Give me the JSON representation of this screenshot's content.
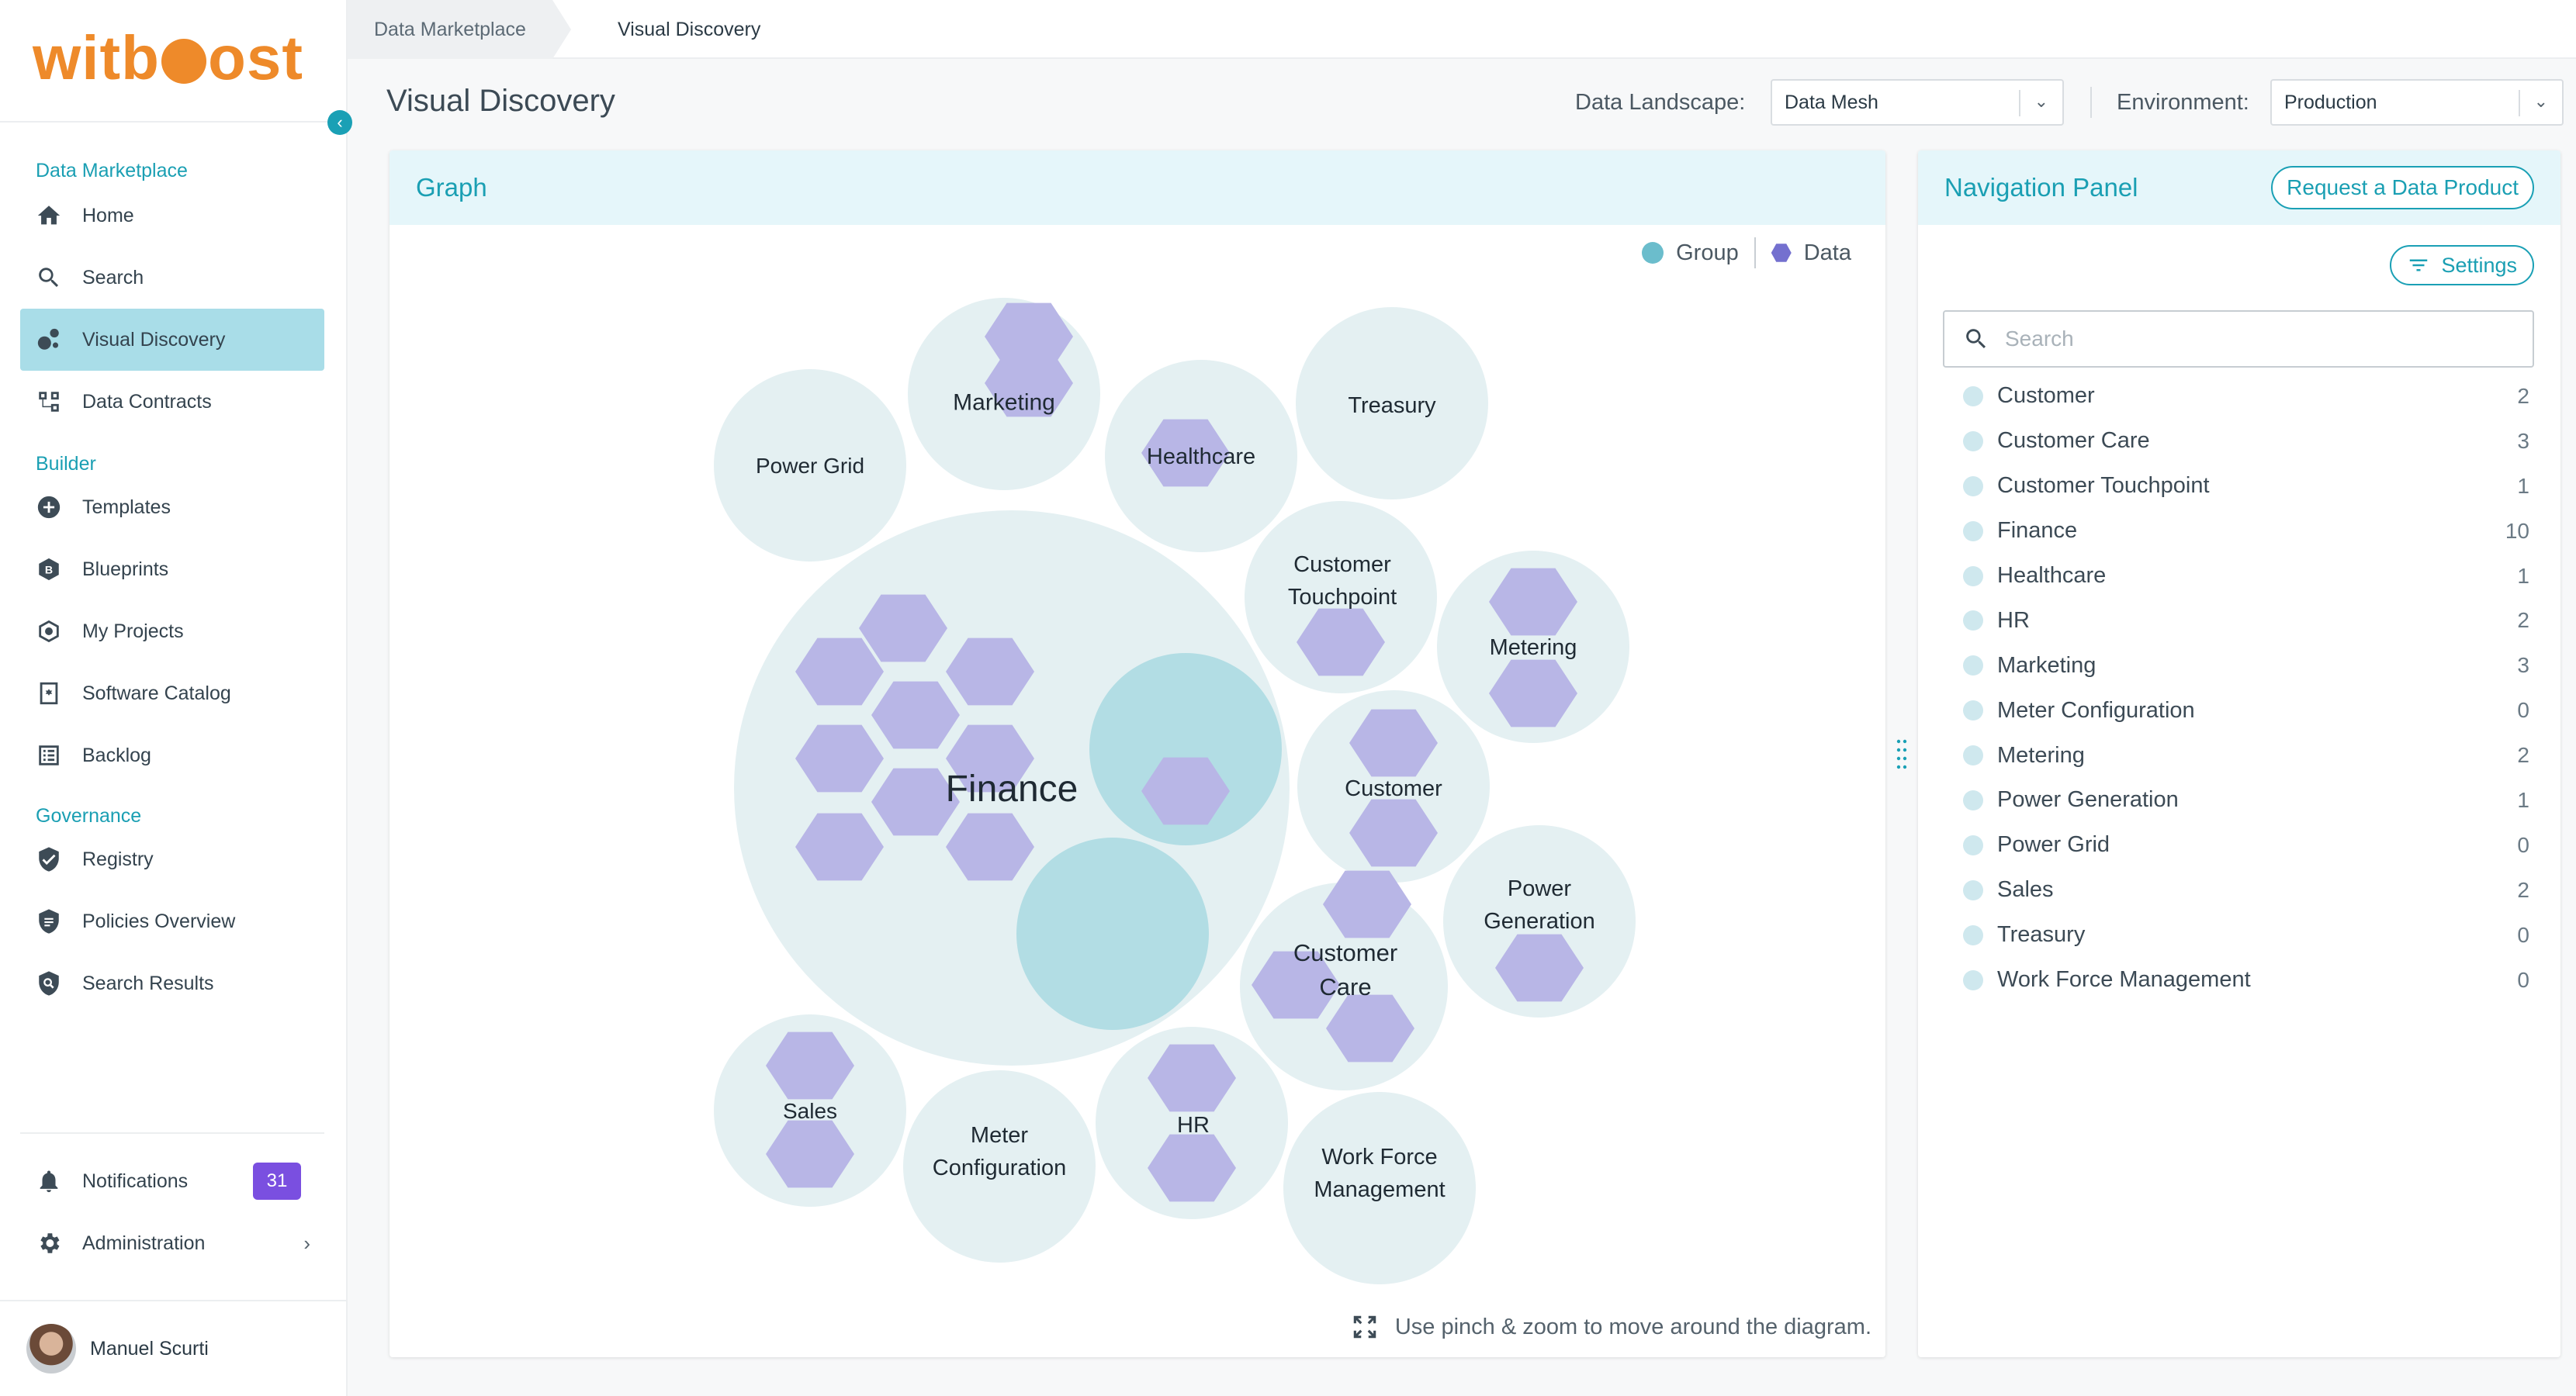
{
  "logo": {
    "before": "witb",
    "after": "ost"
  },
  "sidebar": {
    "sections": {
      "marketplace": "Data Marketplace",
      "builder": "Builder",
      "governance": "Governance"
    },
    "items": [
      {
        "label": "Home",
        "icon": "home-icon"
      },
      {
        "label": "Search",
        "icon": "search-icon"
      },
      {
        "label": "Visual Discovery",
        "icon": "visual-discovery-icon",
        "active": true
      },
      {
        "label": "Data Contracts",
        "icon": "data-contracts-icon"
      },
      {
        "label": "Templates",
        "icon": "templates-icon"
      },
      {
        "label": "Blueprints",
        "icon": "blueprints-icon"
      },
      {
        "label": "My Projects",
        "icon": "projects-icon"
      },
      {
        "label": "Software Catalog",
        "icon": "software-catalog-icon"
      },
      {
        "label": "Backlog",
        "icon": "backlog-icon"
      },
      {
        "label": "Registry",
        "icon": "registry-icon"
      },
      {
        "label": "Policies Overview",
        "icon": "policies-icon"
      },
      {
        "label": "Search Results",
        "icon": "search-results-icon"
      }
    ],
    "notifications": {
      "label": "Notifications",
      "count": "31"
    },
    "administration": {
      "label": "Administration",
      "chevron": "›"
    },
    "user": {
      "name": "Manuel Scurti"
    },
    "collapse_glyph": "‹"
  },
  "breadcrumb": {
    "parent": "Data Marketplace",
    "current": "Visual Discovery"
  },
  "header": {
    "title": "Visual Discovery",
    "landscape_label": "Data Landscape:",
    "landscape_value": "Data Mesh",
    "environment_label": "Environment:",
    "environment_value": "Production",
    "arrow_glyph": "⌄"
  },
  "graph": {
    "title": "Graph",
    "legend": {
      "group": "Group",
      "data": "Data"
    },
    "hint": "Use pinch & zoom to move around the diagram.",
    "colors": {
      "group_fill": "#e4f0f2",
      "sub_group_fill": "#b2dde4",
      "data_fill": "#b8b6e6",
      "legend_group": "#6bbdcc",
      "legend_data": "#7470cf"
    },
    "groups": [
      {
        "label": [
          "Finance"
        ]
      },
      {
        "label": [
          "Power Grid"
        ]
      },
      {
        "label": [
          "Marketing"
        ]
      },
      {
        "label": [
          "Healthcare"
        ]
      },
      {
        "label": [
          "Treasury"
        ]
      },
      {
        "label": [
          "Customer",
          "Touchpoint"
        ]
      },
      {
        "label": [
          "Metering"
        ]
      },
      {
        "label": [
          "Customer"
        ]
      },
      {
        "label": [
          "Power",
          "Generation"
        ]
      },
      {
        "label": [
          "Customer",
          "Care"
        ]
      },
      {
        "label": [
          "Sales"
        ]
      },
      {
        "label": [
          "Meter",
          "Configuration"
        ]
      },
      {
        "label": [
          "HR"
        ]
      },
      {
        "label": [
          "Work Force",
          "Management"
        ]
      }
    ]
  },
  "nav_panel": {
    "title": "Navigation Panel",
    "request_button": "Request a Data Product",
    "settings_button": "Settings",
    "search_placeholder": "Search",
    "items": [
      {
        "name": "Customer",
        "count": "2"
      },
      {
        "name": "Customer Care",
        "count": "3"
      },
      {
        "name": "Customer Touchpoint",
        "count": "1"
      },
      {
        "name": "Finance",
        "count": "10"
      },
      {
        "name": "Healthcare",
        "count": "1"
      },
      {
        "name": "HR",
        "count": "2"
      },
      {
        "name": "Marketing",
        "count": "3"
      },
      {
        "name": "Meter Configuration",
        "count": "0"
      },
      {
        "name": "Metering",
        "count": "2"
      },
      {
        "name": "Power Generation",
        "count": "1"
      },
      {
        "name": "Power Grid",
        "count": "0"
      },
      {
        "name": "Sales",
        "count": "2"
      },
      {
        "name": "Treasury",
        "count": "0"
      },
      {
        "name": "Work Force Management",
        "count": "0"
      }
    ]
  }
}
